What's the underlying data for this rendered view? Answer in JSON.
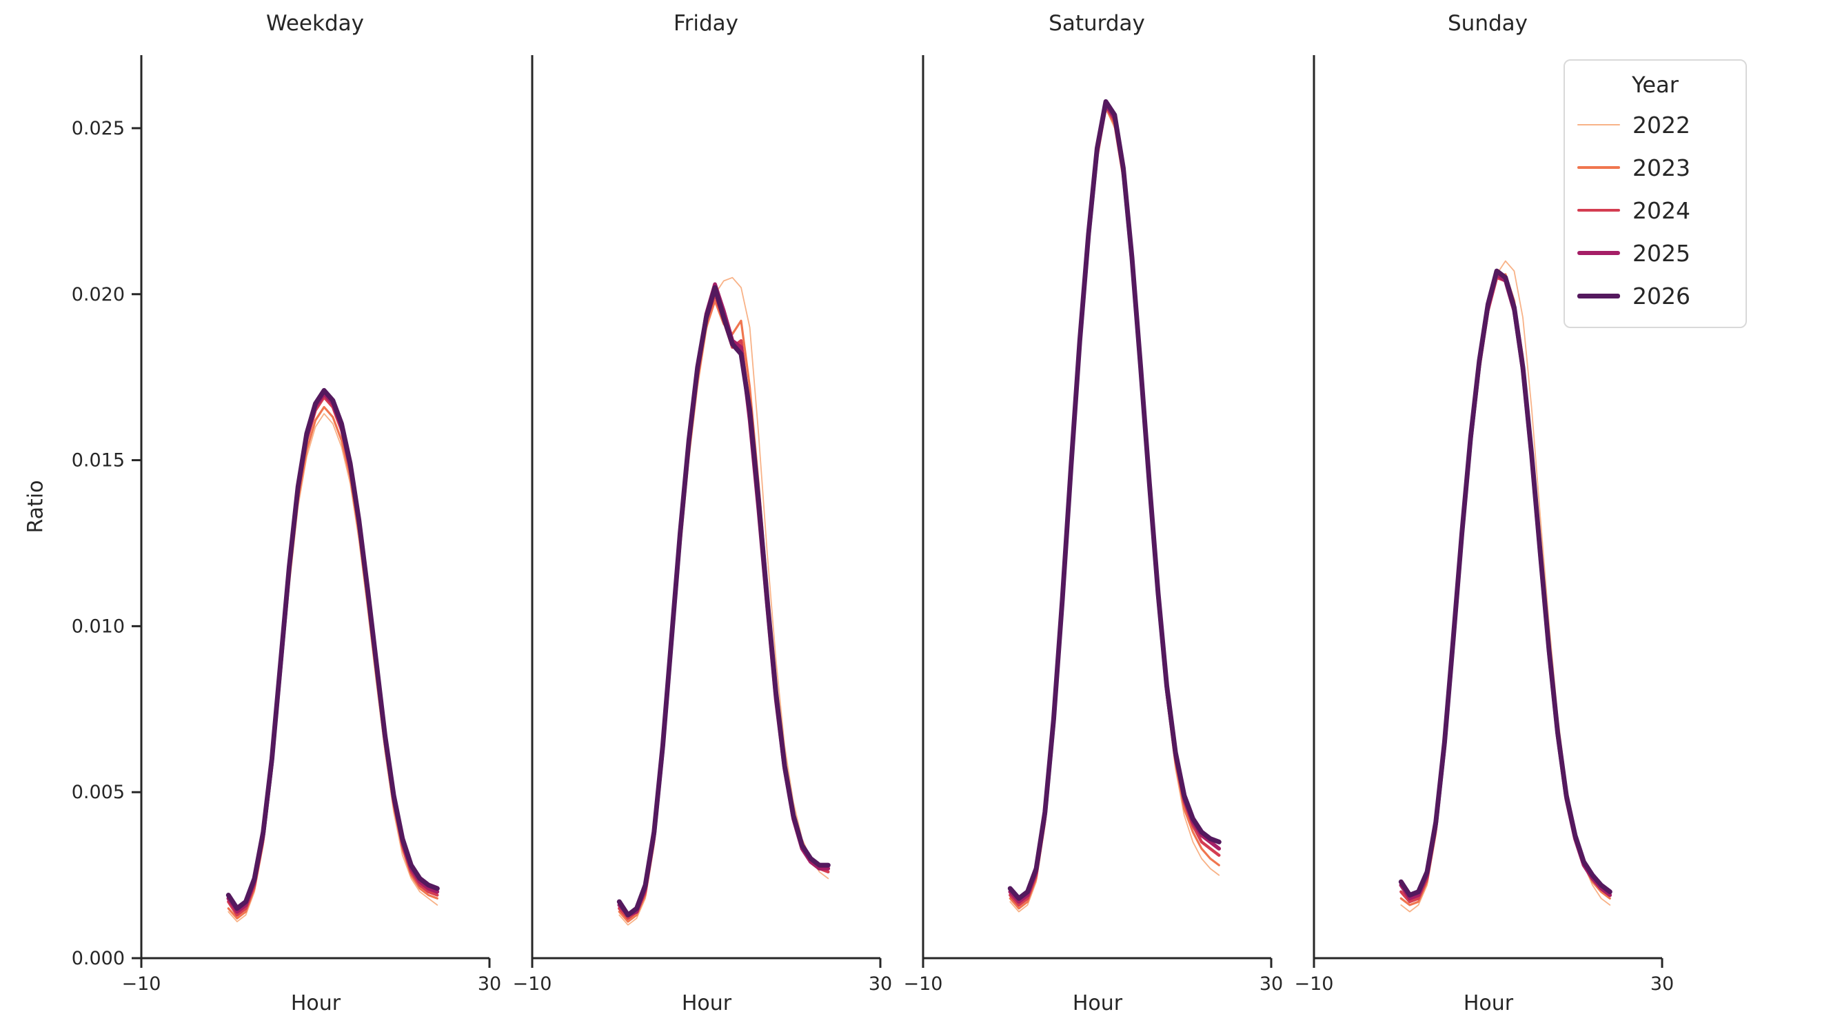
{
  "chart_data": {
    "type": "line",
    "title": "",
    "xlabel": "Hour",
    "ylabel": "Ratio",
    "xlim": [
      -10,
      30
    ],
    "ylim": [
      0,
      0.0272
    ],
    "xticks": [
      -10,
      30
    ],
    "xtick_labels": [
      "−10",
      "30"
    ],
    "yticks": [
      0.0,
      0.005,
      0.01,
      0.015,
      0.02,
      0.025
    ],
    "ytick_labels": [
      "0.000",
      "0.005",
      "0.010",
      "0.015",
      "0.020",
      "0.025"
    ],
    "grid": false,
    "legend_title": "Year",
    "legend_position": "upper right",
    "x": [
      0,
      1,
      2,
      3,
      4,
      5,
      6,
      7,
      8,
      9,
      10,
      11,
      12,
      13,
      14,
      15,
      16,
      17,
      18,
      19,
      20,
      21,
      22,
      23,
      24
    ],
    "series_styles": [
      {
        "label": "2022",
        "color": "#f8b287",
        "line_width": 1.8
      },
      {
        "label": "2023",
        "color": "#f0764f",
        "line_width": 3.2
      },
      {
        "label": "2024",
        "color": "#d43d51",
        "line_width": 4.4
      },
      {
        "label": "2025",
        "color": "#a51e66",
        "line_width": 5.6
      },
      {
        "label": "2026",
        "color": "#54195e",
        "line_width": 7
      }
    ],
    "facets": [
      {
        "title": "Weekday",
        "series": [
          {
            "name": "2022",
            "values": [
              0.0014,
              0.0011,
              0.0013,
              0.002,
              0.0034,
              0.0056,
              0.0084,
              0.0112,
              0.0136,
              0.0151,
              0.016,
              0.0164,
              0.0161,
              0.0154,
              0.0143,
              0.0126,
              0.0105,
              0.0083,
              0.0062,
              0.0044,
              0.0031,
              0.0024,
              0.002,
              0.0018,
              0.0016
            ]
          },
          {
            "name": "2023",
            "values": [
              0.0015,
              0.0012,
              0.0014,
              0.0021,
              0.0035,
              0.0057,
              0.0085,
              0.0114,
              0.0138,
              0.0153,
              0.0162,
              0.0166,
              0.0163,
              0.0156,
              0.0145,
              0.0128,
              0.0107,
              0.0085,
              0.0064,
              0.0046,
              0.0033,
              0.0025,
              0.0021,
              0.0019,
              0.0018
            ]
          },
          {
            "name": "2024",
            "values": [
              0.0017,
              0.0013,
              0.0015,
              0.0022,
              0.0036,
              0.0058,
              0.0087,
              0.0116,
              0.014,
              0.0156,
              0.0165,
              0.0169,
              0.0166,
              0.0159,
              0.0147,
              0.013,
              0.0109,
              0.0087,
              0.0065,
              0.0047,
              0.0034,
              0.0026,
              0.0022,
              0.002,
              0.0019
            ]
          },
          {
            "name": "2025",
            "values": [
              0.0018,
              0.0014,
              0.0016,
              0.0023,
              0.0037,
              0.0059,
              0.0088,
              0.0117,
              0.0141,
              0.0157,
              0.0166,
              0.017,
              0.0167,
              0.016,
              0.0148,
              0.0131,
              0.011,
              0.0088,
              0.0066,
              0.0048,
              0.0035,
              0.0027,
              0.0023,
              0.0021,
              0.002
            ]
          },
          {
            "name": "2026",
            "values": [
              0.0019,
              0.0015,
              0.0017,
              0.0024,
              0.0038,
              0.006,
              0.0089,
              0.0118,
              0.0142,
              0.0158,
              0.0167,
              0.0171,
              0.0168,
              0.0161,
              0.0149,
              0.0132,
              0.0111,
              0.0089,
              0.0067,
              0.0049,
              0.0036,
              0.0028,
              0.0024,
              0.0022,
              0.0021
            ]
          }
        ]
      },
      {
        "title": "Friday",
        "series": [
          {
            "name": "2022",
            "values": [
              0.0013,
              0.001,
              0.0012,
              0.0018,
              0.0034,
              0.006,
              0.0091,
              0.0122,
              0.015,
              0.0172,
              0.0189,
              0.02,
              0.0204,
              0.0205,
              0.0202,
              0.019,
              0.0158,
              0.0122,
              0.009,
              0.0064,
              0.0047,
              0.0036,
              0.003,
              0.0026,
              0.0024
            ]
          },
          {
            "name": "2023",
            "values": [
              0.0014,
              0.0011,
              0.0013,
              0.0019,
              0.0035,
              0.0061,
              0.0093,
              0.0124,
              0.0152,
              0.0174,
              0.019,
              0.0198,
              0.0191,
              0.0188,
              0.0192,
              0.0172,
              0.0143,
              0.0112,
              0.0083,
              0.006,
              0.0044,
              0.0035,
              0.003,
              0.0027,
              0.0026
            ]
          },
          {
            "name": "2024",
            "values": [
              0.0015,
              0.0012,
              0.0014,
              0.002,
              0.0036,
              0.0062,
              0.0094,
              0.0126,
              0.0154,
              0.0176,
              0.0192,
              0.02,
              0.0192,
              0.0184,
              0.0186,
              0.0165,
              0.0137,
              0.0107,
              0.0079,
              0.0057,
              0.0042,
              0.0033,
              0.0029,
              0.0027,
              0.0026
            ]
          },
          {
            "name": "2025",
            "values": [
              0.0016,
              0.0013,
              0.0014,
              0.0021,
              0.0037,
              0.0063,
              0.0095,
              0.0127,
              0.0155,
              0.0177,
              0.0194,
              0.0203,
              0.0195,
              0.0186,
              0.0184,
              0.0162,
              0.0135,
              0.0106,
              0.0078,
              0.0057,
              0.0042,
              0.0033,
              0.0029,
              0.0027,
              0.0027
            ]
          },
          {
            "name": "2026",
            "values": [
              0.0017,
              0.0013,
              0.0015,
              0.0022,
              0.0038,
              0.0064,
              0.0096,
              0.0128,
              0.0156,
              0.0178,
              0.0193,
              0.0202,
              0.0193,
              0.0185,
              0.0182,
              0.0165,
              0.0138,
              0.0108,
              0.008,
              0.0058,
              0.0043,
              0.0034,
              0.003,
              0.0028,
              0.0028
            ]
          }
        ]
      },
      {
        "title": "Saturday",
        "series": [
          {
            "name": "2022",
            "values": [
              0.0017,
              0.0014,
              0.0016,
              0.0023,
              0.004,
              0.0068,
              0.0104,
              0.0144,
              0.0182,
              0.0214,
              0.024,
              0.0256,
              0.025,
              0.0234,
              0.0207,
              0.0174,
              0.0139,
              0.0106,
              0.0078,
              0.0057,
              0.0043,
              0.0035,
              0.003,
              0.0027,
              0.0025
            ]
          },
          {
            "name": "2023",
            "values": [
              0.0018,
              0.0015,
              0.0017,
              0.0024,
              0.0041,
              0.0069,
              0.0105,
              0.0145,
              0.0183,
              0.0215,
              0.0241,
              0.0256,
              0.0251,
              0.0235,
              0.0208,
              0.0175,
              0.014,
              0.0107,
              0.0079,
              0.0059,
              0.0045,
              0.0038,
              0.0033,
              0.003,
              0.0028
            ]
          },
          {
            "name": "2024",
            "values": [
              0.0019,
              0.0016,
              0.0018,
              0.0025,
              0.0042,
              0.007,
              0.0106,
              0.0146,
              0.0184,
              0.0216,
              0.0242,
              0.0257,
              0.0252,
              0.0236,
              0.0209,
              0.0176,
              0.0141,
              0.0108,
              0.008,
              0.006,
              0.0047,
              0.004,
              0.0035,
              0.0033,
              0.0031
            ]
          },
          {
            "name": "2025",
            "values": [
              0.002,
              0.0017,
              0.0019,
              0.0026,
              0.0043,
              0.0071,
              0.0107,
              0.0147,
              0.0185,
              0.0217,
              0.0243,
              0.0257,
              0.0253,
              0.0237,
              0.021,
              0.0177,
              0.0142,
              0.0109,
              0.0081,
              0.0061,
              0.0048,
              0.0041,
              0.0037,
              0.0035,
              0.0033
            ]
          },
          {
            "name": "2026",
            "values": [
              0.0021,
              0.0018,
              0.002,
              0.0027,
              0.0044,
              0.0072,
              0.0108,
              0.0148,
              0.0186,
              0.0218,
              0.0244,
              0.0258,
              0.0254,
              0.0238,
              0.0211,
              0.0178,
              0.0143,
              0.011,
              0.0082,
              0.0062,
              0.0049,
              0.0042,
              0.0038,
              0.0036,
              0.0035
            ]
          }
        ]
      },
      {
        "title": "Sunday",
        "series": [
          {
            "name": "2022",
            "values": [
              0.0016,
              0.0014,
              0.0016,
              0.0022,
              0.0037,
              0.0061,
              0.0092,
              0.0124,
              0.0153,
              0.0176,
              0.0194,
              0.0206,
              0.021,
              0.0207,
              0.0193,
              0.0166,
              0.0133,
              0.0101,
              0.0073,
              0.0052,
              0.0038,
              0.0028,
              0.0022,
              0.0018,
              0.0016
            ]
          },
          {
            "name": "2023",
            "values": [
              0.0018,
              0.0016,
              0.0017,
              0.0023,
              0.0038,
              0.0062,
              0.0093,
              0.0125,
              0.0154,
              0.0177,
              0.0195,
              0.0205,
              0.0206,
              0.0198,
              0.0181,
              0.0155,
              0.0124,
              0.0095,
              0.0069,
              0.0049,
              0.0036,
              0.0028,
              0.0023,
              0.002,
              0.0018
            ]
          },
          {
            "name": "2024",
            "values": [
              0.002,
              0.0017,
              0.0018,
              0.0024,
              0.0039,
              0.0063,
              0.0094,
              0.0126,
              0.0155,
              0.0178,
              0.0195,
              0.0205,
              0.0204,
              0.0196,
              0.0178,
              0.0152,
              0.0122,
              0.0093,
              0.0067,
              0.0048,
              0.0036,
              0.0028,
              0.0024,
              0.0021,
              0.0019
            ]
          },
          {
            "name": "2025",
            "values": [
              0.0022,
              0.0018,
              0.0019,
              0.0025,
              0.004,
              0.0064,
              0.0095,
              0.0127,
              0.0156,
              0.0179,
              0.0196,
              0.0206,
              0.0204,
              0.0195,
              0.0177,
              0.0151,
              0.0121,
              0.0092,
              0.0067,
              0.0048,
              0.0036,
              0.0028,
              0.0024,
              0.0021,
              0.0019
            ]
          },
          {
            "name": "2026",
            "values": [
              0.0023,
              0.0019,
              0.002,
              0.0026,
              0.0041,
              0.0065,
              0.0096,
              0.0128,
              0.0157,
              0.018,
              0.0197,
              0.0207,
              0.0205,
              0.0196,
              0.0178,
              0.0152,
              0.0122,
              0.0093,
              0.0068,
              0.0049,
              0.0037,
              0.0029,
              0.0025,
              0.0022,
              0.002
            ]
          }
        ]
      }
    ]
  }
}
